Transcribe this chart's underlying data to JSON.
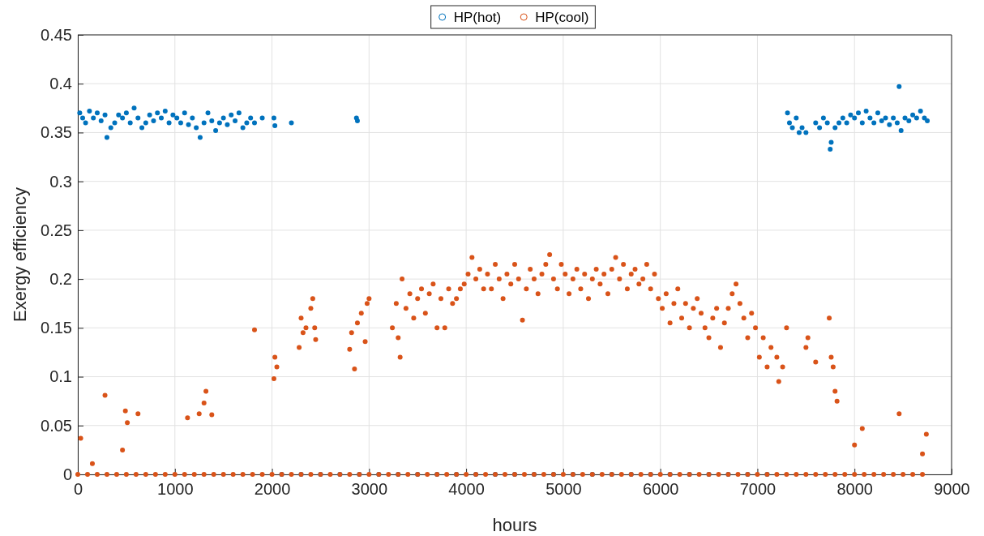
{
  "chart_data": {
    "type": "scatter",
    "xlabel": "hours",
    "ylabel": "Exergy efficiency",
    "xlim": [
      0,
      9000
    ],
    "xticks": [
      0,
      1000,
      2000,
      3000,
      4000,
      5000,
      6000,
      7000,
      8000,
      9000
    ],
    "ylim": [
      0,
      0.45
    ],
    "yticks": [
      0,
      0.05,
      0.1,
      0.15,
      0.2,
      0.25,
      0.3,
      0.35,
      0.4,
      0.45
    ],
    "grid": true,
    "legend": "top",
    "marker": "circle",
    "series": [
      {
        "name": "HP(hot)",
        "color": "#0072bd",
        "x": [
          20,
          50,
          80,
          120,
          160,
          200,
          240,
          280,
          300,
          340,
          380,
          420,
          460,
          500,
          540,
          580,
          620,
          660,
          700,
          740,
          780,
          820,
          860,
          900,
          940,
          980,
          1020,
          1060,
          1100,
          1140,
          1180,
          1220,
          1260,
          1300,
          1340,
          1380,
          1420,
          1460,
          1500,
          1540,
          1580,
          1620,
          1660,
          1700,
          1740,
          1780,
          1820,
          1900,
          2020,
          2030,
          2200,
          2870,
          2880,
          7310,
          7330,
          7360,
          7400,
          7430,
          7460,
          7500,
          7600,
          7640,
          7680,
          7720,
          7750,
          7760,
          7800,
          7840,
          7880,
          7920,
          7960,
          8000,
          8040,
          8080,
          8120,
          8160,
          8200,
          8240,
          8280,
          8320,
          8360,
          8400,
          8440,
          8460,
          8480,
          8520,
          8560,
          8600,
          8640,
          8680,
          8720,
          8750,
          2100,
          2300,
          2500,
          2700,
          2900,
          3100,
          3300,
          3500,
          3700,
          3900,
          4100,
          4300,
          4500,
          4700,
          4900,
          5100,
          5300,
          5500,
          5700,
          5900,
          6100,
          6300,
          6500,
          6700,
          6900,
          7100
        ],
        "values": [
          0.37,
          0.365,
          0.36,
          0.372,
          0.365,
          0.37,
          0.362,
          0.368,
          0.345,
          0.355,
          0.36,
          0.368,
          0.365,
          0.37,
          0.36,
          0.375,
          0.365,
          0.355,
          0.36,
          0.368,
          0.362,
          0.37,
          0.365,
          0.372,
          0.36,
          0.368,
          0.365,
          0.36,
          0.37,
          0.358,
          0.365,
          0.355,
          0.345,
          0.36,
          0.37,
          0.362,
          0.352,
          0.36,
          0.365,
          0.358,
          0.368,
          0.362,
          0.37,
          0.355,
          0.36,
          0.365,
          0.36,
          0.365,
          0.365,
          0.357,
          0.36,
          0.365,
          0.362,
          0.37,
          0.36,
          0.355,
          0.365,
          0.35,
          0.355,
          0.35,
          0.36,
          0.355,
          0.365,
          0.36,
          0.333,
          0.34,
          0.355,
          0.36,
          0.365,
          0.36,
          0.368,
          0.365,
          0.37,
          0.36,
          0.372,
          0.365,
          0.36,
          0.37,
          0.362,
          0.365,
          0.358,
          0.365,
          0.36,
          0.397,
          0.352,
          0.365,
          0.362,
          0.368,
          0.365,
          0.372,
          0.365,
          0.362,
          0,
          0,
          0,
          0,
          0,
          0,
          0,
          0,
          0,
          0,
          0,
          0,
          0,
          0,
          0,
          0,
          0,
          0,
          0,
          0,
          0,
          0,
          0,
          0,
          0,
          0
        ]
      },
      {
        "name": "HP(cool)",
        "color": "#d95319",
        "x": [
          30,
          150,
          280,
          460,
          490,
          510,
          620,
          1130,
          1250,
          1300,
          1320,
          1380,
          1820,
          2020,
          2030,
          2050,
          2280,
          2300,
          2320,
          2350,
          2400,
          2420,
          2440,
          2450,
          2800,
          2820,
          2850,
          2880,
          2920,
          2960,
          2980,
          3000,
          3240,
          3280,
          3300,
          3320,
          3340,
          3380,
          3420,
          3460,
          3500,
          3540,
          3580,
          3620,
          3660,
          3700,
          3740,
          3780,
          3820,
          3860,
          3900,
          3940,
          3980,
          4020,
          4060,
          4100,
          4140,
          4180,
          4220,
          4260,
          4300,
          4340,
          4380,
          4420,
          4460,
          4500,
          4540,
          4580,
          4620,
          4660,
          4700,
          4740,
          4780,
          4820,
          4860,
          4900,
          4940,
          4980,
          5020,
          5060,
          5100,
          5140,
          5180,
          5220,
          5260,
          5300,
          5340,
          5380,
          5420,
          5460,
          5500,
          5540,
          5580,
          5620,
          5660,
          5700,
          5740,
          5780,
          5820,
          5860,
          5900,
          5940,
          5980,
          6020,
          6060,
          6100,
          6140,
          6180,
          6220,
          6260,
          6300,
          6340,
          6380,
          6420,
          6460,
          6500,
          6540,
          6580,
          6620,
          6660,
          6700,
          6740,
          6780,
          6820,
          6860,
          6900,
          6940,
          6980,
          7020,
          7060,
          7100,
          7140,
          7200,
          7220,
          7260,
          7300,
          7500,
          7520,
          7600,
          7740,
          7760,
          7780,
          7800,
          7820,
          8000,
          8080,
          8460,
          8700,
          8740,
          0,
          100,
          200,
          300,
          400,
          500,
          600,
          700,
          800,
          900,
          1000,
          1100,
          1200,
          1300,
          1400,
          1500,
          1600,
          1700,
          1800,
          1900,
          2000,
          2100,
          2200,
          2300,
          2400,
          2500,
          2600,
          2700,
          2800,
          2900,
          3000,
          3100,
          3200,
          3300,
          3400,
          3500,
          3600,
          3700,
          3800,
          3900,
          4000,
          4100,
          4200,
          4300,
          4400,
          4500,
          4600,
          4700,
          4800,
          4900,
          5000,
          5100,
          5200,
          5300,
          5400,
          5500,
          5600,
          5700,
          5800,
          5900,
          6000,
          6100,
          6200,
          6300,
          6400,
          6500,
          6600,
          6700,
          6800,
          6900,
          7000,
          7100,
          7200,
          7300,
          7400,
          7500,
          7600,
          7700,
          7800,
          7900,
          8000,
          8100,
          8200,
          8300,
          8400,
          8500,
          8600,
          8700
        ],
        "values": [
          0.037,
          0.011,
          0.081,
          0.025,
          0.065,
          0.053,
          0.062,
          0.058,
          0.062,
          0.073,
          0.085,
          0.061,
          0.148,
          0.098,
          0.12,
          0.11,
          0.13,
          0.16,
          0.145,
          0.15,
          0.17,
          0.18,
          0.15,
          0.138,
          0.128,
          0.145,
          0.108,
          0.155,
          0.165,
          0.136,
          0.175,
          0.18,
          0.15,
          0.175,
          0.14,
          0.12,
          0.2,
          0.17,
          0.185,
          0.16,
          0.18,
          0.19,
          0.165,
          0.185,
          0.195,
          0.15,
          0.18,
          0.15,
          0.19,
          0.175,
          0.18,
          0.19,
          0.195,
          0.205,
          0.222,
          0.2,
          0.21,
          0.19,
          0.205,
          0.19,
          0.215,
          0.2,
          0.18,
          0.205,
          0.195,
          0.215,
          0.2,
          0.158,
          0.19,
          0.21,
          0.2,
          0.185,
          0.205,
          0.215,
          0.225,
          0.2,
          0.19,
          0.215,
          0.205,
          0.185,
          0.2,
          0.21,
          0.19,
          0.205,
          0.18,
          0.2,
          0.21,
          0.195,
          0.205,
          0.185,
          0.21,
          0.222,
          0.2,
          0.215,
          0.19,
          0.205,
          0.21,
          0.195,
          0.2,
          0.215,
          0.19,
          0.205,
          0.18,
          0.17,
          0.185,
          0.155,
          0.175,
          0.19,
          0.16,
          0.175,
          0.15,
          0.17,
          0.18,
          0.165,
          0.15,
          0.14,
          0.16,
          0.17,
          0.13,
          0.155,
          0.17,
          0.185,
          0.195,
          0.175,
          0.16,
          0.14,
          0.165,
          0.15,
          0.12,
          0.14,
          0.11,
          0.13,
          0.12,
          0.095,
          0.11,
          0.15,
          0.13,
          0.14,
          0.115,
          0.16,
          0.12,
          0.11,
          0.085,
          0.075,
          0.03,
          0.047,
          0.062,
          0.021,
          0.041,
          0,
          0,
          0,
          0,
          0,
          0,
          0,
          0,
          0,
          0,
          0,
          0,
          0,
          0,
          0,
          0,
          0,
          0,
          0,
          0,
          0,
          0,
          0,
          0,
          0,
          0,
          0,
          0,
          0,
          0,
          0,
          0,
          0,
          0,
          0,
          0,
          0,
          0,
          0,
          0,
          0,
          0,
          0,
          0,
          0,
          0,
          0,
          0,
          0,
          0,
          0,
          0,
          0,
          0,
          0,
          0,
          0,
          0,
          0,
          0,
          0,
          0,
          0,
          0,
          0,
          0,
          0,
          0,
          0,
          0,
          0,
          0,
          0,
          0,
          0,
          0,
          0,
          0,
          0,
          0,
          0,
          0,
          0,
          0,
          0,
          0,
          0,
          0
        ]
      }
    ]
  }
}
